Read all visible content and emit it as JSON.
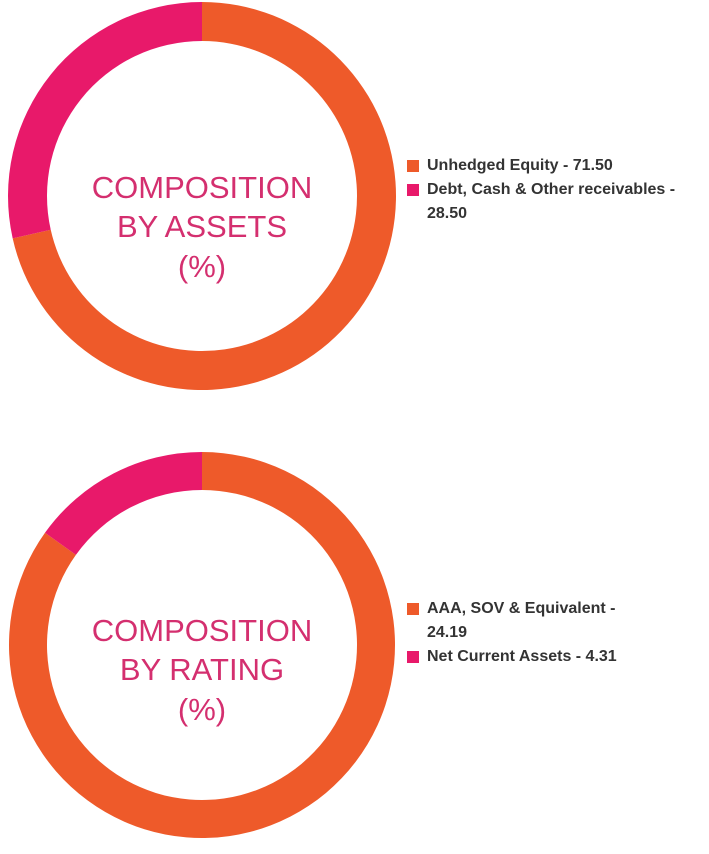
{
  "chart_data": [
    {
      "type": "donut",
      "title": [
        "COMPOSITION",
        "BY ASSETS",
        "(%)"
      ],
      "categories": [
        "Unhedged Equity - 71.50",
        "Debt, Cash & Other receivables - 28.50"
      ],
      "values": [
        71.5,
        28.5
      ],
      "colors": [
        "#ee5a2a",
        "#e8196a"
      ]
    },
    {
      "type": "donut",
      "title": [
        "COMPOSITION",
        "BY RATING",
        "(%)"
      ],
      "categories": [
        "AAA, SOV & Equivalent - 24.19",
        "Net Current Assets - 4.31"
      ],
      "values": [
        24.19,
        4.31
      ],
      "colors": [
        "#ee5a2a",
        "#e8196a"
      ]
    }
  ]
}
